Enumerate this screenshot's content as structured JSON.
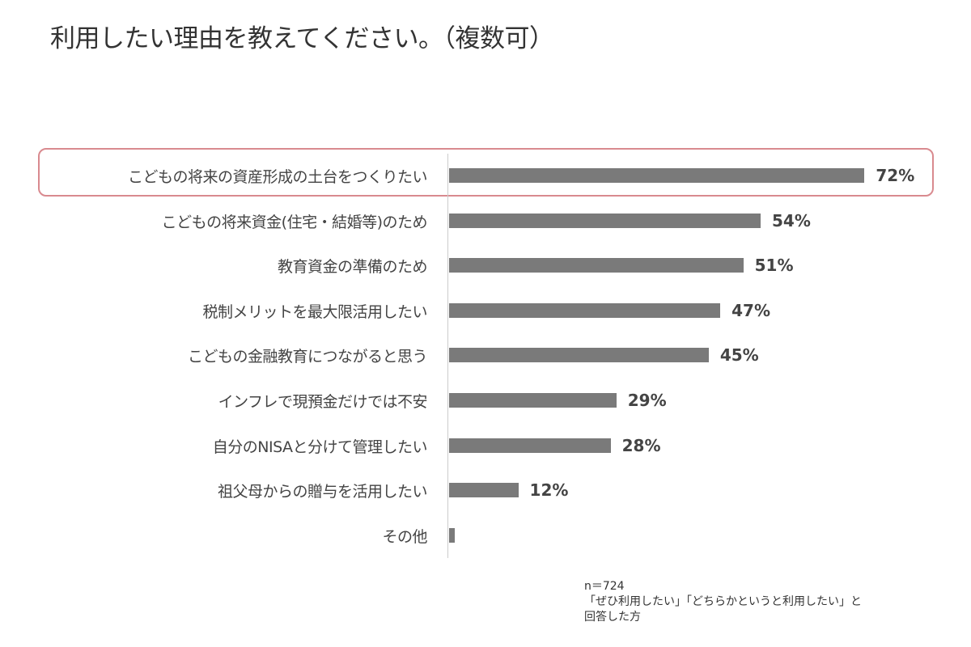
{
  "title": "利用したい理由を教えてください。（複数可）",
  "chart_data": {
    "type": "bar",
    "orientation": "horizontal",
    "title": "利用したい理由を教えてください。（複数可）",
    "categories": [
      "こどもの将来の資産形成の土台をつくりたい",
      "こどもの将来資金(住宅・結婚等)のため",
      "教育資金の準備のため",
      "税制メリットを最大限活用したい",
      "こどもの金融教育につながると思う",
      "インフレで現預金だけでは不安",
      "自分のNISAと分けて管理したい",
      "祖父母からの贈与を活用したい",
      "その他"
    ],
    "values": [
      72,
      54,
      51,
      47,
      45,
      29,
      28,
      12,
      1
    ],
    "value_labels": [
      "72%",
      "54%",
      "51%",
      "47%",
      "45%",
      "29%",
      "28%",
      "12%",
      ""
    ],
    "unit": "%",
    "xlabel": "",
    "ylabel": "",
    "xlim": [
      0,
      80
    ],
    "grid": false,
    "legend": null,
    "highlighted_category": "こどもの将来の資産形成の土台をつくりたい",
    "bar_color": "#7a7a7a",
    "highlight_color": "#d98a8f"
  },
  "note": {
    "n": "n＝724",
    "line1": "「ぜひ利用したい」「どちらかというと利用したい」と",
    "line2": "回答した方"
  }
}
